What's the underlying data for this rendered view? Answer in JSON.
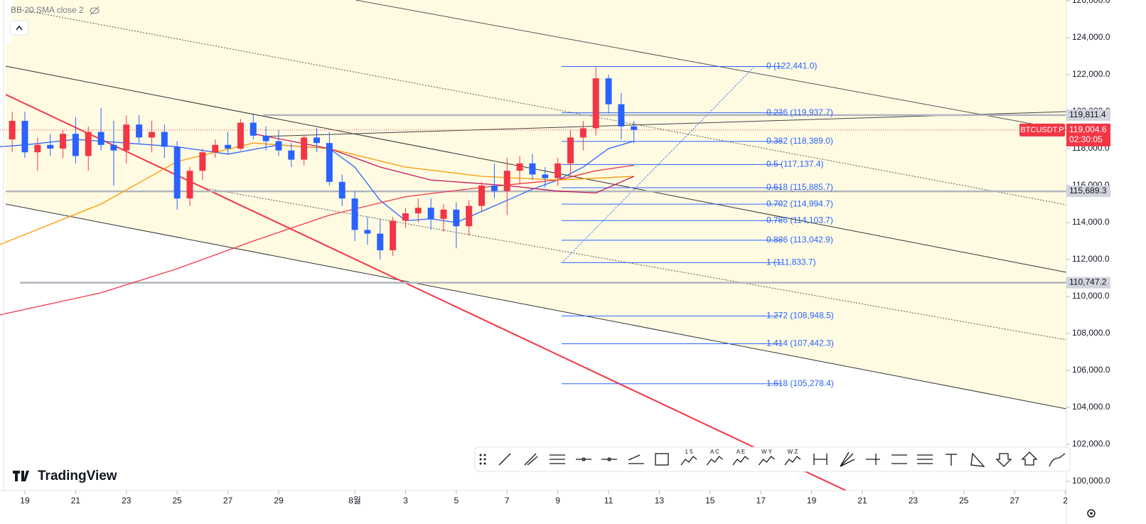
{
  "chart_data": {
    "type": "candlestick",
    "indicator_label": "BB 20 SMA close 2",
    "x": [
      -0.5,
      0,
      0.5,
      1,
      1.5,
      2,
      2.5,
      3,
      3.5,
      4,
      4.5,
      5,
      5.5,
      6,
      6.5,
      7,
      7.5,
      8,
      8.5,
      9,
      9.5,
      10,
      10.5,
      11,
      11.5,
      12,
      12.5,
      13,
      13.5,
      14,
      14.5,
      15,
      15.5,
      16,
      16.5,
      17,
      17.5,
      18,
      18.5,
      19,
      19.5,
      20,
      20.5,
      21,
      21.5,
      22,
      22.5,
      23,
      23.5,
      24
    ],
    "open": [
      118500,
      119500,
      117800,
      118200,
      118000,
      118800,
      117600,
      118900,
      118200,
      117900,
      119300,
      118600,
      118900,
      118100,
      115300,
      116800,
      117800,
      118200,
      118000,
      119400,
      118700,
      118400,
      117900,
      117400,
      118600,
      118300,
      116200,
      115300,
      113600,
      113400,
      112500,
      114100,
      114500,
      114800,
      114200,
      114700,
      113800,
      114900,
      116000,
      115700,
      116800,
      117200,
      116600,
      116400,
      117200,
      118600,
      119100,
      121800,
      120400,
      119200
    ],
    "high": [
      120000,
      120000,
      118600,
      118800,
      119000,
      119700,
      119200,
      120200,
      119500,
      119800,
      119800,
      119500,
      119300,
      118400,
      117000,
      118000,
      118500,
      118900,
      119600,
      119900,
      119200,
      119000,
      118300,
      118700,
      119100,
      118900,
      116600,
      115700,
      114300,
      114200,
      114300,
      114800,
      115300,
      115300,
      115000,
      115100,
      115200,
      116200,
      117200,
      117500,
      117600,
      117700,
      117000,
      117500,
      119000,
      119500,
      122441,
      122000,
      121000,
      119500
    ],
    "low": [
      117800,
      117500,
      116800,
      117600,
      117500,
      117200,
      116800,
      117900,
      116000,
      117200,
      118300,
      117800,
      117500,
      114700,
      114900,
      116300,
      117500,
      117700,
      117900,
      118500,
      117900,
      117600,
      117000,
      117100,
      117800,
      116000,
      114900,
      113000,
      112800,
      112000,
      112200,
      113700,
      114000,
      113600,
      113500,
      112600,
      113300,
      114600,
      115300,
      114400,
      116100,
      116300,
      115900,
      116000,
      116600,
      117900,
      118700,
      119900,
      118500,
      118300
    ],
    "close": [
      119500,
      117800,
      118200,
      118000,
      118800,
      117600,
      118900,
      118200,
      117900,
      119300,
      118600,
      118900,
      118100,
      115300,
      116800,
      117800,
      118200,
      118000,
      119400,
      118700,
      118400,
      117900,
      117400,
      118600,
      118300,
      116200,
      115300,
      113600,
      113400,
      112500,
      114100,
      114500,
      114800,
      114200,
      114700,
      113800,
      114900,
      116000,
      115700,
      116800,
      117200,
      116600,
      116400,
      117200,
      118600,
      119100,
      121800,
      120400,
      119200,
      119004.6
    ],
    "up_color": "#f23645",
    "down_color": "#2962ff",
    "xlim": [
      -0.98,
      41.04
    ],
    "ylim": [
      99500,
      126038
    ],
    "xticks": [
      {
        "value": 0,
        "label": "19"
      },
      {
        "value": 2,
        "label": "21"
      },
      {
        "value": 4,
        "label": "23"
      },
      {
        "value": 6,
        "label": "25"
      },
      {
        "value": 8,
        "label": "27"
      },
      {
        "value": 10,
        "label": "29"
      },
      {
        "value": 13,
        "label": "8월"
      },
      {
        "value": 15,
        "label": "3"
      },
      {
        "value": 17,
        "label": "5"
      },
      {
        "value": 19,
        "label": "7"
      },
      {
        "value": 21,
        "label": "9"
      },
      {
        "value": 23,
        "label": "11"
      },
      {
        "value": 25,
        "label": "13"
      },
      {
        "value": 27,
        "label": "15"
      },
      {
        "value": 29,
        "label": "17"
      },
      {
        "value": 31,
        "label": "19"
      },
      {
        "value": 33,
        "label": "21"
      },
      {
        "value": 35,
        "label": "23"
      },
      {
        "value": 37,
        "label": "25"
      },
      {
        "value": 39,
        "label": "27"
      },
      {
        "value": 41,
        "label": "2"
      }
    ],
    "yticks": [
      {
        "value": 100000,
        "label": "100,000.0"
      },
      {
        "value": 102000,
        "label": "102,000.0"
      },
      {
        "value": 104000,
        "label": "104,000.0"
      },
      {
        "value": 106000,
        "label": "106,000.0"
      },
      {
        "value": 108000,
        "label": "108,000.0"
      },
      {
        "value": 110000,
        "label": "110,000.0"
      },
      {
        "value": 112000,
        "label": "112,000.0"
      },
      {
        "value": 114000,
        "label": "114,000.0"
      },
      {
        "value": 116000,
        "label": "116,000.0"
      },
      {
        "value": 118000,
        "label": "118,000.0"
      },
      {
        "value": 120000,
        "label": "120,000.0"
      },
      {
        "value": 122000,
        "label": "122,000.0"
      },
      {
        "value": 124000,
        "label": "124,000.0"
      },
      {
        "value": 126000,
        "label": "126,000.0"
      }
    ],
    "ma_series": [
      {
        "color": "#2962ff",
        "x": [
          -1,
          0,
          2,
          4,
          6,
          8,
          10,
          12,
          13,
          14,
          15,
          16,
          17,
          18,
          19,
          20,
          21,
          22,
          23,
          24
        ],
        "values": [
          118100,
          118200,
          118500,
          118300,
          118100,
          117700,
          118200,
          118000,
          117000,
          115200,
          114100,
          114200,
          114000,
          114600,
          115200,
          115800,
          116300,
          117000,
          118000,
          118400
        ]
      },
      {
        "color": "#f23645",
        "x": [
          -1,
          3,
          6,
          9,
          12,
          15,
          18,
          21,
          22.5,
          24
        ],
        "values": [
          109000,
          110200,
          111500,
          113000,
          114400,
          115400,
          115900,
          116300,
          116800,
          117100
        ]
      },
      {
        "color": "#ff9800",
        "x": [
          -1,
          3,
          6,
          9,
          12,
          15,
          18,
          21,
          24
        ],
        "values": [
          112800,
          115000,
          117300,
          118300,
          118000,
          117000,
          116500,
          116300,
          116500
        ]
      },
      {
        "color": "#c2185b",
        "x": [
          9,
          12,
          14,
          16,
          19,
          21,
          22.5,
          24
        ],
        "values": [
          118800,
          118000,
          117000,
          116300,
          116000,
          115700,
          115600,
          116500
        ]
      }
    ],
    "price_lines": [
      {
        "value": 119811.4,
        "label": "119,811.4"
      },
      {
        "value": 115689.3,
        "label": "115,689.3"
      },
      {
        "value": 110747.2,
        "label": "110,747.2"
      }
    ],
    "last_price": {
      "symbol": "BTCUSDT.P",
      "value": 119004.6,
      "label": "119,004.6",
      "countdown": "02:30:05"
    },
    "fib_color": "#2962ff",
    "fib_levels": [
      {
        "value": 122441.0,
        "label": "0 (122,441.0)"
      },
      {
        "value": 119937.7,
        "label": "0.236 (119,937.7)"
      },
      {
        "value": 118389.0,
        "label": "0.382 (118,389.0)"
      },
      {
        "value": 117137.4,
        "label": "0.5 (117,137.4)"
      },
      {
        "value": 115885.7,
        "label": "0.618 (115,885.7)"
      },
      {
        "value": 114994.7,
        "label": "0.702 (114,994.7)"
      },
      {
        "value": 114103.7,
        "label": "0.786 (114,103.7)"
      },
      {
        "value": 113042.9,
        "label": "0.886 (113,042.9)"
      },
      {
        "value": 111833.7,
        "label": "1 (111,833.7)"
      },
      {
        "value": 108948.5,
        "label": "1.272 (108,948.5)"
      },
      {
        "value": 107442.3,
        "label": "1.414 (107,442.3)"
      },
      {
        "value": 105278.4,
        "label": "1.618 (105,278.4)"
      }
    ]
  },
  "branding": {
    "logo_text": "TradingView"
  },
  "toolbar": {
    "icon_labels": [
      "1 5",
      "A C",
      "A E",
      "W Y",
      "W Z"
    ]
  }
}
